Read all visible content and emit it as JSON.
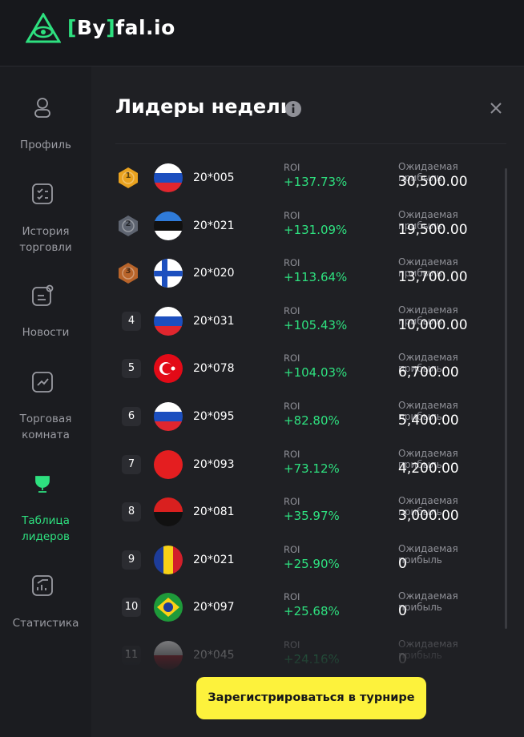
{
  "logo": {
    "open": "[",
    "by": "By",
    "close": "]",
    "rest": "fal.io"
  },
  "nav": [
    "Профиль",
    "История торговли",
    "Новости",
    "Торговая комната",
    "Таблица лидеров",
    "Статистика"
  ],
  "panel": {
    "title": "Лидеры недели",
    "roi_label": "ROI",
    "profit_label": "Ожидаемая прибыль"
  },
  "rows": [
    {
      "rank": 1,
      "name": "20*005",
      "roi": "+137.73%",
      "profit": "30,500.00"
    },
    {
      "rank": 2,
      "name": "20*021",
      "roi": "+131.09%",
      "profit": "19,500.00"
    },
    {
      "rank": 3,
      "name": "20*020",
      "roi": "+113.64%",
      "profit": "13,700.00"
    },
    {
      "rank": 4,
      "name": "20*031",
      "roi": "+105.43%",
      "profit": "10,000.00"
    },
    {
      "rank": 5,
      "name": "20*078",
      "roi": "+104.03%",
      "profit": "6,700.00"
    },
    {
      "rank": 6,
      "name": "20*095",
      "roi": "+82.80%",
      "profit": "5,400.00"
    },
    {
      "rank": 7,
      "name": "20*093",
      "roi": "+73.12%",
      "profit": "4,200.00"
    },
    {
      "rank": 8,
      "name": "20*081",
      "roi": "+35.97%",
      "profit": "3,000.00"
    },
    {
      "rank": 9,
      "name": "20*021",
      "roi": "+25.90%",
      "profit": "0"
    },
    {
      "rank": 10,
      "name": "20*097",
      "roi": "+25.68%",
      "profit": "0"
    },
    {
      "rank": 11,
      "name": "20*045",
      "roi": "+24.16%",
      "profit": "0"
    }
  ],
  "button": "Зарегистрироваться в турнире"
}
